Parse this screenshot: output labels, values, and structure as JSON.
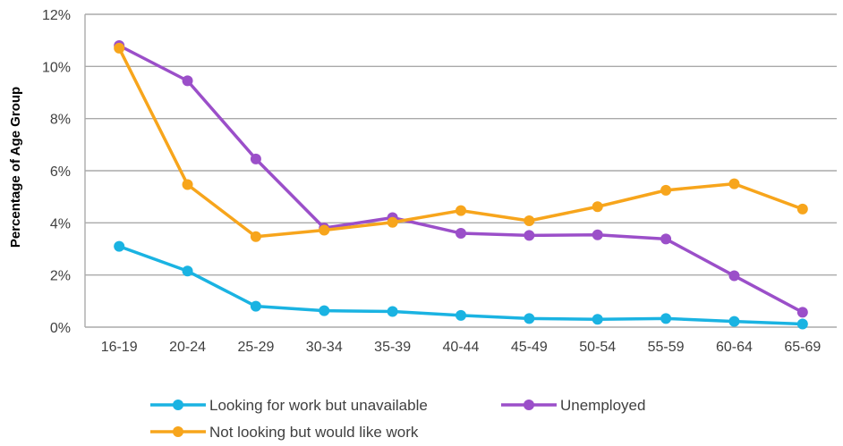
{
  "chart_data": {
    "type": "line",
    "title": "",
    "xlabel": "",
    "ylabel": "Percentage of Age Group",
    "categories": [
      "16-19",
      "20-24",
      "25-29",
      "30-34",
      "35-39",
      "40-44",
      "45-49",
      "50-54",
      "55-59",
      "60-64",
      "65-69"
    ],
    "ylim": [
      0,
      12
    ],
    "yticks": [
      "0%",
      "2%",
      "4%",
      "6%",
      "8%",
      "10%",
      "12%"
    ],
    "grid": true,
    "legend_position": "bottom",
    "series": [
      {
        "name": "Looking for work but unavailable",
        "color": "#1ab3e2",
        "values": [
          3.1,
          2.15,
          0.8,
          0.63,
          0.6,
          0.45,
          0.33,
          0.3,
          0.33,
          0.22,
          0.12
        ]
      },
      {
        "name": "Unemployed",
        "color": "#9b4fc9",
        "values": [
          10.8,
          9.45,
          6.45,
          3.8,
          4.2,
          3.6,
          3.52,
          3.54,
          3.38,
          1.97,
          0.57
        ]
      },
      {
        "name": "Not looking but would like work",
        "color": "#f7a51c",
        "values": [
          10.7,
          5.47,
          3.47,
          3.72,
          4.02,
          4.47,
          4.08,
          4.62,
          5.25,
          5.5,
          4.53
        ]
      }
    ]
  }
}
